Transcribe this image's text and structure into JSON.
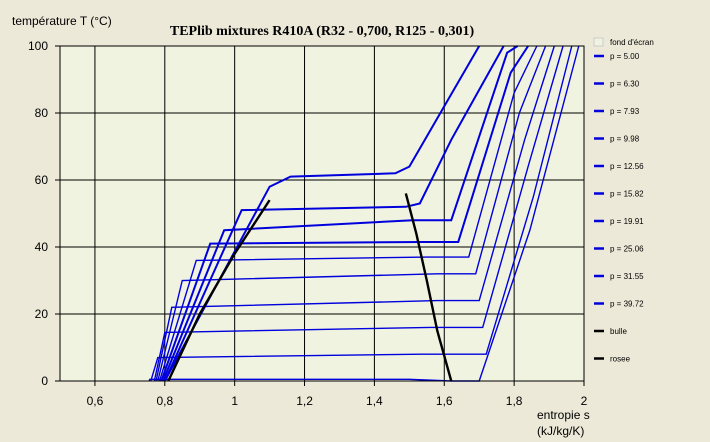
{
  "chart_data": {
    "type": "line",
    "title": "TEPlib mixtures R410A (R32 - 0,700, R125 - 0,301)",
    "ylabel": "température T (°C)",
    "xlabel": "entropie s",
    "xunit": "(kJ/kg/K)",
    "xlim": [
      0.5,
      2.0
    ],
    "ylim": [
      0,
      100
    ],
    "xticks": [
      "0,6",
      "0,8",
      "1",
      "1,2",
      "1,4",
      "1,6",
      "1,8",
      "2"
    ],
    "yticks": [
      "0",
      "20",
      "40",
      "60",
      "80",
      "100"
    ],
    "xtick_values": [
      0.6,
      0.8,
      1.0,
      1.2,
      1.4,
      1.6,
      1.8,
      2.0
    ],
    "ytick_values": [
      0,
      20,
      40,
      60,
      80,
      100
    ],
    "grid": true,
    "legend_position": "right",
    "legend_background": "fond d'écran",
    "background_color": "#eff3e0",
    "colors": {
      "isobar": "#0000dd",
      "saturation": "#000000"
    },
    "series": [
      {
        "name": "p = 5.00",
        "points": [
          [
            0.755,
            0
          ],
          [
            0.757,
            0.5
          ],
          [
            1.5,
            0.5
          ],
          [
            1.62,
            0
          ],
          [
            1.7,
            0
          ],
          [
            1.845,
            45
          ],
          [
            1.985,
            100
          ]
        ]
      },
      {
        "name": "p = 6.30",
        "points": [
          [
            0.76,
            0
          ],
          [
            0.78,
            7
          ],
          [
            1.535,
            8
          ],
          [
            1.61,
            8
          ],
          [
            1.72,
            8
          ],
          [
            1.855,
            55
          ],
          [
            1.965,
            100
          ]
        ]
      },
      {
        "name": "p = 7.93",
        "points": [
          [
            0.77,
            0
          ],
          [
            0.8,
            14.5
          ],
          [
            1.56,
            16
          ],
          [
            1.595,
            16
          ],
          [
            1.71,
            16
          ],
          [
            1.84,
            64
          ],
          [
            1.94,
            100
          ]
        ]
      },
      {
        "name": "p = 9.98",
        "points": [
          [
            0.775,
            0
          ],
          [
            0.82,
            22
          ],
          [
            1.58,
            24
          ],
          [
            1.587,
            24
          ],
          [
            1.7,
            24
          ],
          [
            1.83,
            72
          ],
          [
            1.915,
            100
          ]
        ]
      },
      {
        "name": "p = 12.56",
        "points": [
          [
            0.78,
            0
          ],
          [
            0.85,
            30
          ],
          [
            1.58,
            32
          ],
          [
            1.59,
            32
          ],
          [
            1.69,
            32
          ],
          [
            1.815,
            80
          ],
          [
            1.89,
            100
          ]
        ]
      },
      {
        "name": "p = 15.82",
        "points": [
          [
            0.785,
            0
          ],
          [
            0.89,
            36
          ],
          [
            1.55,
            37
          ],
          [
            1.57,
            37
          ],
          [
            1.67,
            37
          ],
          [
            1.8,
            86
          ],
          [
            1.865,
            100
          ]
        ]
      },
      {
        "name": "p = 19.91",
        "points": [
          [
            0.79,
            0
          ],
          [
            0.93,
            41
          ],
          [
            1.54,
            41.5
          ],
          [
            1.55,
            41.5
          ],
          [
            1.64,
            41.5
          ],
          [
            1.79,
            92
          ],
          [
            1.84,
            100
          ]
        ]
      },
      {
        "name": "p = 25.06",
        "points": [
          [
            0.795,
            0
          ],
          [
            0.97,
            45
          ],
          [
            1.51,
            48
          ],
          [
            1.53,
            48
          ],
          [
            1.62,
            48
          ],
          [
            1.78,
            98
          ],
          [
            1.81,
            100
          ]
        ]
      },
      {
        "name": "p = 31.55",
        "points": [
          [
            0.8,
            0
          ],
          [
            1.02,
            51
          ],
          [
            1.49,
            52
          ],
          [
            1.53,
            53
          ],
          [
            1.62,
            72
          ],
          [
            1.77,
            100
          ]
        ]
      },
      {
        "name": "p = 39.72",
        "points": [
          [
            0.8,
            0
          ],
          [
            1.1,
            58
          ],
          [
            1.16,
            61
          ],
          [
            1.46,
            62
          ],
          [
            1.5,
            64
          ],
          [
            1.6,
            82
          ],
          [
            1.7,
            100
          ]
        ]
      }
    ],
    "saturation_curves": [
      {
        "name": "bulle",
        "points": [
          [
            0.81,
            0
          ],
          [
            0.9,
            20
          ],
          [
            1.0,
            38
          ],
          [
            1.05,
            46
          ],
          [
            1.1,
            54
          ]
        ]
      },
      {
        "name": "rosee",
        "points": [
          [
            1.49,
            56
          ],
          [
            1.52,
            44
          ],
          [
            1.55,
            30
          ],
          [
            1.58,
            15
          ],
          [
            1.62,
            0
          ]
        ]
      }
    ]
  }
}
